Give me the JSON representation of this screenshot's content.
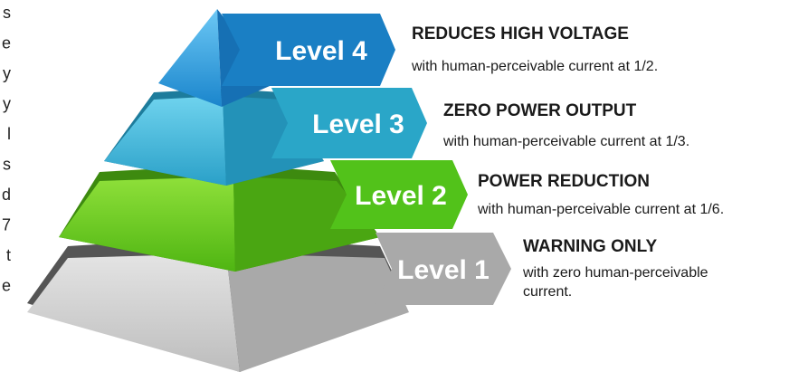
{
  "side_text": [
    "s",
    "e",
    "y",
    "y",
    "l",
    "s",
    "d",
    "7",
    "t",
    "e"
  ],
  "levels": [
    {
      "label": "Level 4",
      "heading": "REDUCES HIGH VOLTAGE",
      "description": [
        "with human-perceivable current at 1/2."
      ]
    },
    {
      "label": "Level 3",
      "heading": "ZERO POWER OUTPUT",
      "description": [
        "with human-perceivable current at 1/3."
      ]
    },
    {
      "label": "Level 2",
      "heading": "POWER REDUCTION",
      "description": [
        "with human-perceivable current at 1/6."
      ]
    },
    {
      "label": "Level 1",
      "heading": "WARNING ONLY",
      "description": [
        "with zero human-perceivable",
        "current."
      ]
    }
  ]
}
